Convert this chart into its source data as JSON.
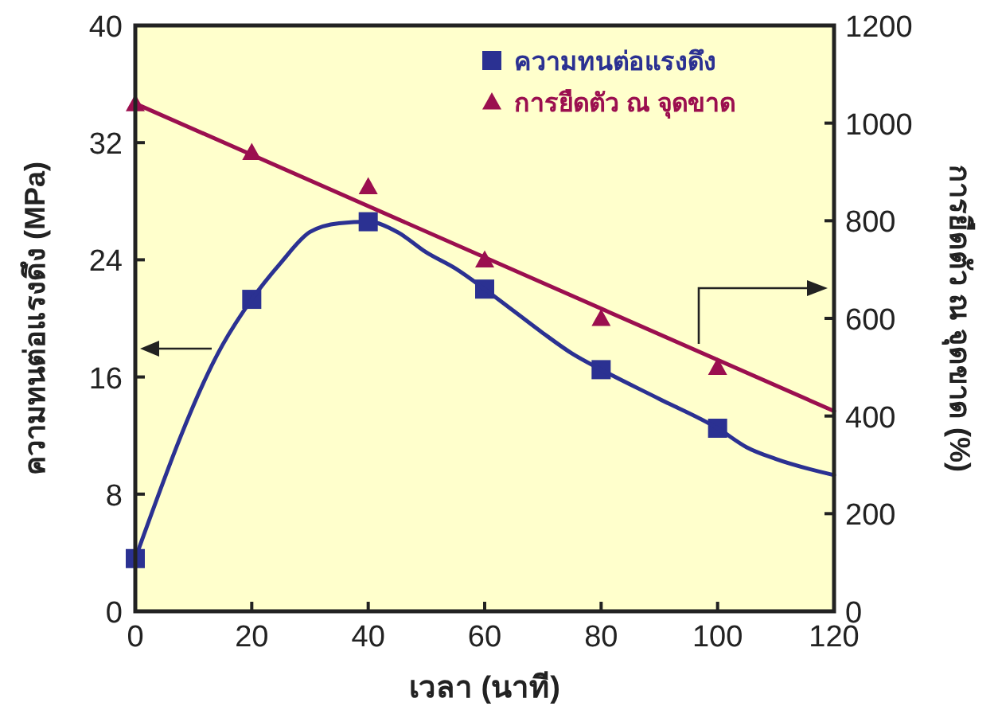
{
  "chart_data": {
    "type": "scatter",
    "xlabel": "เวลา (นาที)",
    "ylabel": "ความทนต่อแรงดึง (MPa)",
    "y2label": "การยืดตัว ณ จุดขาด (%)",
    "xlim": [
      0,
      120
    ],
    "xticks": [
      0,
      20,
      40,
      60,
      80,
      100,
      120
    ],
    "ylim": [
      0,
      40
    ],
    "yticks": [
      0,
      8,
      16,
      24,
      32,
      40
    ],
    "y2lim": [
      0,
      1200
    ],
    "y2ticks": [
      0,
      200,
      400,
      600,
      800,
      1000,
      1200
    ],
    "legend": "top right",
    "grid": false,
    "series": [
      {
        "name": "ความทนต่อแรงดึง",
        "marker": "square",
        "color": "#2b3192",
        "x": [
          0,
          20,
          40,
          60,
          80,
          100
        ],
        "values": [
          3.6,
          21.3,
          26.6,
          22.0,
          16.5,
          12.5
        ]
      },
      {
        "type": "line",
        "marker": "none",
        "color": "#2b3192",
        "x": [
          0,
          15,
          20,
          25,
          30,
          35,
          40,
          45,
          50,
          55,
          60,
          65,
          70,
          75,
          80,
          90,
          100,
          105,
          110,
          120
        ],
        "values": [
          3.6,
          18.2,
          21.3,
          23.8,
          25.9,
          26.5,
          26.6,
          25.9,
          24.5,
          23.4,
          22.0,
          20.5,
          19.0,
          17.6,
          16.5,
          14.5,
          12.5,
          11.2,
          10.4,
          9.3
        ]
      },
      {
        "name": "การยืดตัว ณ จุดขาด",
        "marker": "triangle",
        "axis": "y2",
        "color": "#9b0f4f",
        "x": [
          0,
          20,
          40,
          60,
          80,
          100
        ],
        "values": [
          1040,
          940,
          870,
          720,
          600,
          500
        ]
      },
      {
        "type": "line",
        "marker": "none",
        "axis": "y2",
        "color": "#9b0f4f",
        "x": [
          0,
          120
        ],
        "values": [
          1040,
          410
        ]
      }
    ]
  }
}
